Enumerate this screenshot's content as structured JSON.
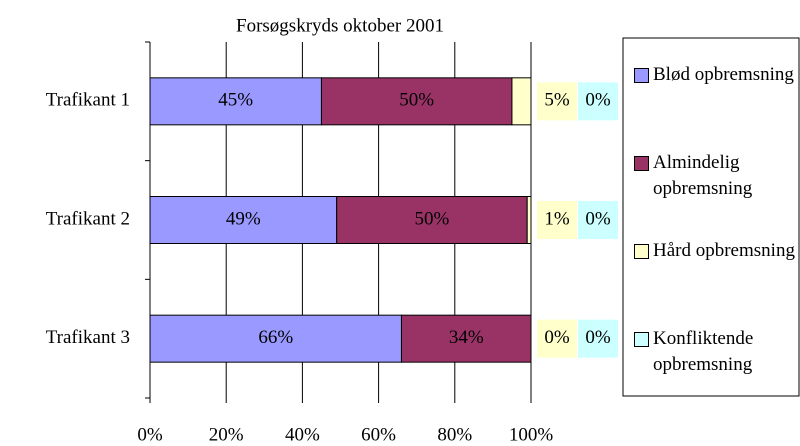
{
  "chart_data": {
    "type": "stacked_bar_horizontal",
    "title": "Forsøgskryds oktober 2001",
    "categories": [
      "Trafikant 1",
      "Trafikant 2",
      "Trafikant 3"
    ],
    "series": [
      {
        "name": "Blød opbremsning",
        "color": "#9999ff",
        "values": [
          45,
          49,
          66
        ],
        "value_labels": [
          "45%",
          "49%",
          "66%"
        ]
      },
      {
        "name": "Almindelig opbremsning",
        "color": "#993366",
        "values": [
          50,
          50,
          34
        ],
        "value_labels": [
          "50%",
          "50%",
          "34%"
        ]
      },
      {
        "name": "Hård opbremsning",
        "color": "#ffffcc",
        "values": [
          5,
          1,
          0
        ],
        "value_labels": [
          "5%",
          "1%",
          "0%"
        ]
      },
      {
        "name": "Konfliktende opbremsning",
        "color": "#ccffff",
        "values": [
          0,
          0,
          0
        ],
        "value_labels": [
          "0%",
          "0%",
          "0%"
        ]
      }
    ],
    "xlim": [
      0,
      100
    ],
    "xticks": [
      {
        "value": 0,
        "label": "0%"
      },
      {
        "value": 20,
        "label": "20%"
      },
      {
        "value": 40,
        "label": "40%"
      },
      {
        "value": 60,
        "label": "60%"
      },
      {
        "value": 80,
        "label": "80%"
      },
      {
        "value": 100,
        "label": "100%"
      }
    ],
    "grid": true,
    "legend": "right"
  }
}
